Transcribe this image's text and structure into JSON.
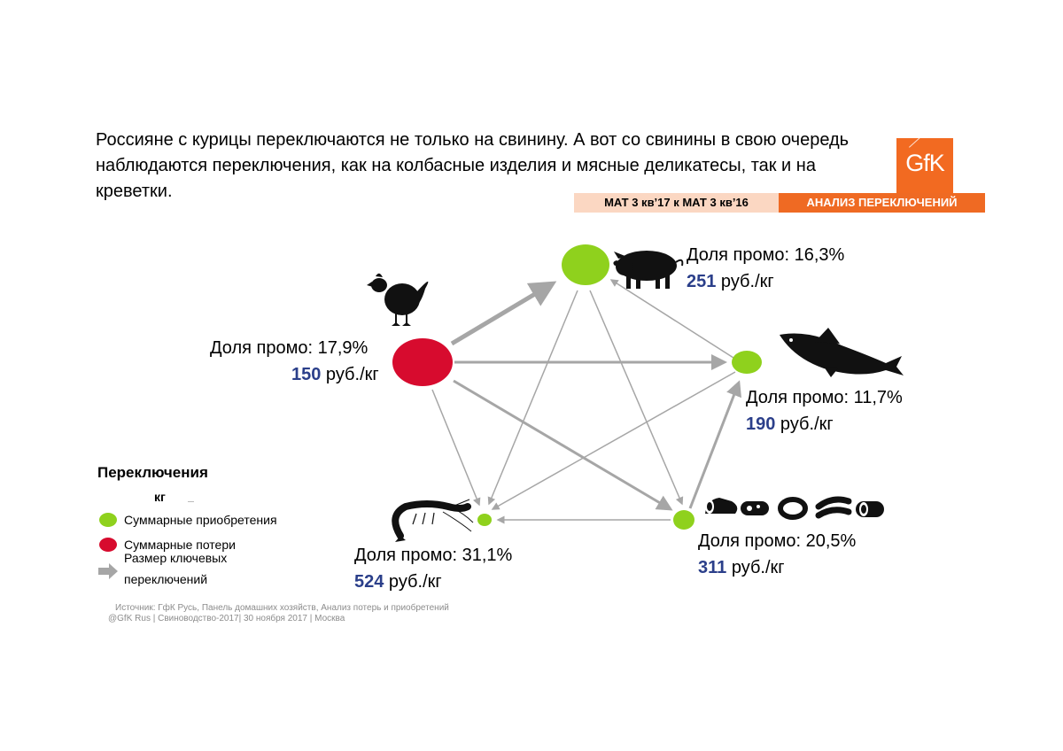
{
  "headline": "Россияне с курицы переключаются не только на свинину. А вот со свинины в свою очередь наблюдаются переключения, как на колбасные изделия и мясные деликатесы, так и на креветки.",
  "logo": {
    "text": "GfK",
    "color": "#f26a21"
  },
  "period_bar": "МАТ 3 кв’17 к МАТ 3 кв’16",
  "analysis_bar": "АНАЛИЗ ПЕРЕКЛЮЧЕНИЙ",
  "colors": {
    "gain": "#8fd11d",
    "loss": "#d70b2e",
    "arrow": "#a6a6a6",
    "price": "#2b3f8a"
  },
  "nodes": {
    "chicken": {
      "icon": "chicken-icon",
      "type": "loss",
      "promo": "Доля промо: 17,9%",
      "price": "150",
      "unit": " руб./кг"
    },
    "pork": {
      "icon": "pig-icon",
      "type": "gain",
      "promo": "Доля промо: 16,3%",
      "price": "251",
      "unit": " руб./кг"
    },
    "fish": {
      "icon": "fish-icon",
      "type": "gain",
      "promo": "Доля промо: 11,7%",
      "price": "190",
      "unit": " руб./кг"
    },
    "sausage": {
      "icon": "sausage-icon",
      "type": "gain",
      "promo": "Доля промо: 20,5%",
      "price": "311",
      "unit": " руб./кг"
    },
    "shrimp": {
      "icon": "shrimp-icon",
      "type": "gain",
      "promo": "Доля промо: 31,1%",
      "price": "524",
      "unit": " руб./кг"
    }
  },
  "legend": {
    "title": "Переключения",
    "unit": "кг",
    "gain": "Суммарные приобретения",
    "loss": "Суммарные потери",
    "arrow_line1": "Размер ключевых",
    "arrow_line2": "переключений"
  },
  "source": "Источник: ГфК Русь, Панель домашних хозяйств,  Анализ потерь и приобретений",
  "footer": "@GfK Rus | Свиноводство-2017| 30 ноября 2017 | Москва"
}
